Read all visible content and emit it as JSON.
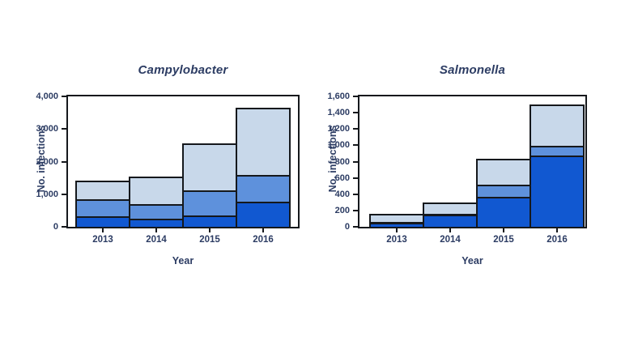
{
  "page": {
    "background": "#ffffff"
  },
  "palette": {
    "bar_dark": "#1158d1",
    "bar_medium": "#5e91dc",
    "bar_light": "#c8d8ea",
    "outline": "#15181c",
    "text": "#2c3c63"
  },
  "chart_data": [
    {
      "type": "bar",
      "stacked": true,
      "title": "Campylobacter",
      "xlabel": "Year",
      "ylabel": "No. infections",
      "categories": [
        "2013",
        "2014",
        "2015",
        "2016"
      ],
      "ymax": 4000,
      "ytick_values": [
        0,
        1000,
        2000,
        3000,
        4000
      ],
      "ytick_labels": [
        "0",
        "1,000",
        "2,000",
        "3,000",
        "4,000"
      ],
      "grid": false,
      "legend": "none",
      "series": [
        {
          "name": "dark-blue-bottom-segment",
          "color": "#1158d1",
          "values": [
            320,
            240,
            350,
            780
          ]
        },
        {
          "name": "medium-blue-middle-segment",
          "color": "#5e91dc",
          "values": [
            530,
            450,
            780,
            820
          ]
        },
        {
          "name": "light-blue-top-segment",
          "color": "#c8d8ea",
          "values": [
            510,
            800,
            1380,
            2000
          ]
        }
      ],
      "stack_totals": [
        1360,
        1490,
        2510,
        3600
      ]
    },
    {
      "type": "bar",
      "stacked": true,
      "title": "Salmonella",
      "xlabel": "Year",
      "ylabel": "No. infections",
      "categories": [
        "2013",
        "2014",
        "2015",
        "2016"
      ],
      "ymax": 1600,
      "ytick_values": [
        0,
        200,
        400,
        600,
        800,
        1000,
        1200,
        1400,
        1600
      ],
      "ytick_labels": [
        "0",
        "200",
        "400",
        "600",
        "800",
        "1,000",
        "1,200",
        "1,400",
        "1,600"
      ],
      "grid": false,
      "legend": "none",
      "series": [
        {
          "name": "dark-blue-bottom-segment",
          "color": "#1158d1",
          "values": [
            45,
            145,
            370,
            870
          ]
        },
        {
          "name": "medium-blue-middle-segment",
          "color": "#5e91dc",
          "values": [
            10,
            15,
            150,
            120
          ]
        },
        {
          "name": "light-blue-top-segment",
          "color": "#c8d8ea",
          "values": [
            85,
            115,
            290,
            490
          ]
        }
      ],
      "stack_totals": [
        140,
        275,
        810,
        1480
      ]
    }
  ]
}
